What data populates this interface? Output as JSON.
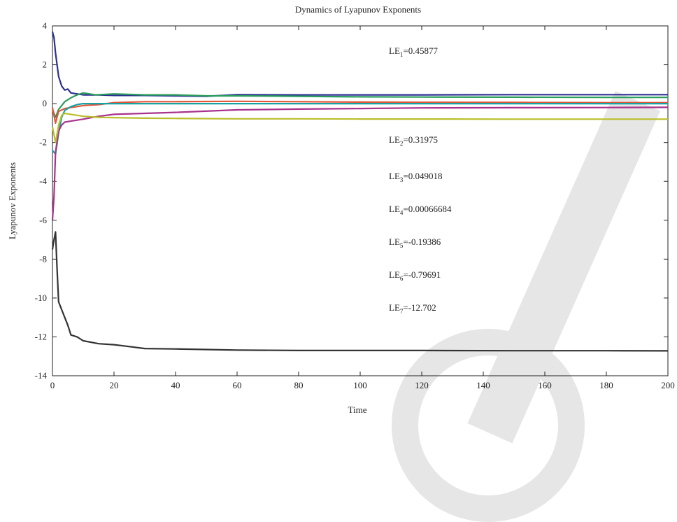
{
  "chart_data": {
    "type": "line",
    "title": "Dynamics of Lyapunov Exponents",
    "xlabel": "Time",
    "ylabel": "Lyapunov Exponents",
    "xlim": [
      0,
      200
    ],
    "ylim": [
      -14,
      4
    ],
    "x_ticks": [
      "0",
      "20",
      "40",
      "60",
      "80",
      "100",
      "120",
      "140",
      "160",
      "180",
      "200"
    ],
    "y_ticks": [
      "4",
      "2",
      "0",
      "-2",
      "-4",
      "-6",
      "-8",
      "-10",
      "-12",
      "-14"
    ],
    "grid": false,
    "series": [
      {
        "color": "#2e3192",
        "x": [
          0,
          0.5,
          1,
          2,
          3,
          4,
          5,
          6,
          8,
          10,
          15,
          20,
          30,
          40,
          50,
          60,
          80,
          100,
          120,
          150,
          180,
          200
        ],
        "values": [
          3.7,
          3.4,
          2.6,
          1.4,
          0.9,
          0.7,
          0.75,
          0.55,
          0.5,
          0.45,
          0.45,
          0.42,
          0.42,
          0.4,
          0.38,
          0.46,
          0.45,
          0.45,
          0.45,
          0.46,
          0.46,
          0.46
        ]
      },
      {
        "color": "#2a9d5c",
        "x": [
          0,
          1,
          2,
          4,
          6,
          8,
          10,
          14,
          20,
          30,
          40,
          50,
          60,
          80,
          100,
          120,
          150,
          180,
          200
        ],
        "values": [
          -0.3,
          -0.7,
          -0.3,
          0.1,
          0.3,
          0.45,
          0.55,
          0.45,
          0.5,
          0.45,
          0.45,
          0.4,
          0.4,
          0.38,
          0.35,
          0.34,
          0.33,
          0.32,
          0.32
        ]
      },
      {
        "color": "#e0573a",
        "x": [
          0,
          1,
          2,
          4,
          6,
          8,
          10,
          15,
          20,
          30,
          40,
          60,
          80,
          100,
          120,
          150,
          180,
          200
        ],
        "values": [
          -0.2,
          -1.0,
          -0.4,
          -0.25,
          -0.2,
          -0.15,
          -0.1,
          -0.05,
          0.05,
          0.1,
          0.1,
          0.12,
          0.1,
          0.08,
          0.07,
          0.06,
          0.05,
          0.05
        ]
      },
      {
        "color": "#17a3a3",
        "x": [
          0,
          1,
          2,
          3,
          4,
          6,
          8,
          10,
          15,
          20,
          30,
          40,
          60,
          80,
          100,
          150,
          200
        ],
        "values": [
          -2.4,
          -2.6,
          -1.5,
          -0.7,
          -0.35,
          -0.15,
          -0.05,
          0.0,
          0.0,
          0.0,
          0.0,
          0.0,
          0.0,
          0.0,
          0.0,
          0.0,
          0.0
        ]
      },
      {
        "color": "#a8338c",
        "x": [
          0,
          0.5,
          1,
          2,
          3,
          4,
          6,
          8,
          10,
          15,
          20,
          30,
          40,
          60,
          80,
          100,
          120,
          150,
          180,
          200
        ],
        "values": [
          -6.0,
          -4.8,
          -2.5,
          -1.4,
          -1.1,
          -0.95,
          -0.9,
          -0.85,
          -0.8,
          -0.65,
          -0.55,
          -0.5,
          -0.45,
          -0.32,
          -0.28,
          -0.25,
          -0.22,
          -0.21,
          -0.2,
          -0.19
        ]
      },
      {
        "color": "#b9bf2a",
        "x": [
          0,
          1,
          2,
          3,
          4,
          6,
          8,
          10,
          15,
          20,
          30,
          40,
          60,
          80,
          100,
          120,
          150,
          180,
          200
        ],
        "values": [
          -1.2,
          -2.0,
          -1.1,
          -0.6,
          -0.5,
          -0.55,
          -0.6,
          -0.65,
          -0.7,
          -0.72,
          -0.75,
          -0.76,
          -0.78,
          -0.78,
          -0.79,
          -0.79,
          -0.8,
          -0.8,
          -0.8
        ]
      },
      {
        "color": "#333333",
        "x": [
          0,
          0.5,
          1,
          1.5,
          2,
          3,
          4,
          5,
          6,
          8,
          10,
          15,
          20,
          25,
          30,
          40,
          50,
          60,
          80,
          100,
          120,
          150,
          180,
          200
        ],
        "values": [
          -7.5,
          -7.0,
          -6.6,
          -8.5,
          -10.2,
          -10.6,
          -11.0,
          -11.4,
          -11.9,
          -12.0,
          -12.2,
          -12.35,
          -12.4,
          -12.5,
          -12.6,
          -12.62,
          -12.65,
          -12.68,
          -12.7,
          -12.7,
          -12.7,
          -12.71,
          -12.71,
          -12.72
        ]
      }
    ],
    "annotations": [
      {
        "base": "LE",
        "sub": "1",
        "value": "=0.45877"
      },
      {
        "base": "LE",
        "sub": "2",
        "value": "=0.31975"
      },
      {
        "base": "LE",
        "sub": "3",
        "value": "=0.049018"
      },
      {
        "base": "LE",
        "sub": "4",
        "value": "=0.00066684"
      },
      {
        "base": "LE",
        "sub": "5",
        "value": "=-0.19386"
      },
      {
        "base": "LE",
        "sub": "6",
        "value": "=-0.79691"
      },
      {
        "base": "LE",
        "sub": "7",
        "value": "=-12.702"
      }
    ]
  }
}
